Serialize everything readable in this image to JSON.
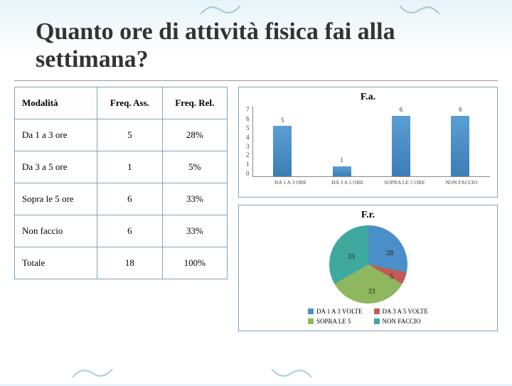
{
  "title": "Quanto ore di attività fisica fai alla settimana?",
  "table": {
    "headers": [
      "Modalità",
      "Freq. Ass.",
      "Freq. Rel."
    ],
    "rows": [
      [
        "Da 1 a 3 ore",
        "5",
        "28%"
      ],
      [
        "Da 3 a 5 ore",
        "1",
        "5%"
      ],
      [
        "Sopra le 5 ore",
        "6",
        "33%"
      ],
      [
        "Non faccio",
        "6",
        "33%"
      ],
      [
        "Totale",
        "18",
        "100%"
      ]
    ]
  },
  "bar_chart": {
    "title": "F.a.",
    "y_max": 7,
    "y_ticks": [
      "0",
      "1",
      "2",
      "3",
      "4",
      "5",
      "6",
      "7"
    ],
    "categories": [
      "DA 1 A 3 ORE",
      "DA 3 A 5 ORE",
      "SOPRA LE 5 ORE",
      "NON FACCIO"
    ],
    "values": [
      5,
      1,
      6,
      6
    ],
    "bar_color": "#4a8fc7"
  },
  "pie_chart": {
    "title": "F.r.",
    "slices": [
      {
        "label": "DA 1 A 3 VOLTE",
        "value": 28,
        "color": "#4a8fc7"
      },
      {
        "label": "DA 3 A 5 VOLTE",
        "value": 5,
        "color": "#c25b56"
      },
      {
        "label": "SOPRA LE 5",
        "value": 33,
        "color": "#8fb760"
      },
      {
        "label": "NON FACCIO",
        "value": 33,
        "color": "#3fa9a0"
      }
    ],
    "labels_shown": [
      "28",
      "5",
      "33",
      "33"
    ]
  },
  "colors": {
    "border": "#7aa5c4",
    "swirl": "#5aa0b8"
  }
}
